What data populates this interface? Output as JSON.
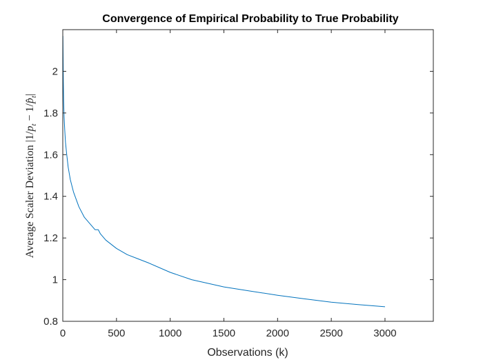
{
  "chart_data": {
    "type": "line",
    "title": "Convergence of Empirical Probability to True Probability",
    "xlabel": "Observations (k)",
    "ylabel": "Average Scaler Deviation |1/p_t − 1/p̂_t|",
    "ylabel_parts": {
      "text": "Average Scaler Deviation ",
      "math_open": "|1/",
      "p1": "p",
      "sub1": "t",
      "minus": " − 1/",
      "p2": "p̂",
      "sub2": "t",
      "math_close": "|"
    },
    "xlim": [
      0,
      3450
    ],
    "ylim": [
      0.8,
      2.2
    ],
    "x_ticks": [
      0,
      500,
      1000,
      1500,
      2000,
      2500,
      3000
    ],
    "y_ticks": [
      0.8,
      1,
      1.2,
      1.4,
      1.6,
      1.8,
      2
    ],
    "x_tick_labels": [
      "0",
      "500",
      "1000",
      "1500",
      "2000",
      "2500",
      "3000"
    ],
    "y_tick_labels": [
      "0.8",
      "1",
      "1.2",
      "1.4",
      "1.6",
      "1.8",
      "2"
    ],
    "grid": false,
    "line_color": "#0072BD",
    "series": [
      {
        "x": [
          1,
          3,
          5,
          8,
          12,
          18,
          25,
          35,
          50,
          70,
          100,
          150,
          200,
          300,
          330,
          350,
          400,
          500,
          600,
          700,
          800,
          1000,
          1200,
          1500,
          1750,
          2000,
          2250,
          2500,
          2750,
          3000
        ],
        "y": [
          2.17,
          2.06,
          1.95,
          1.86,
          1.78,
          1.72,
          1.66,
          1.61,
          1.54,
          1.48,
          1.42,
          1.35,
          1.3,
          1.24,
          1.24,
          1.22,
          1.19,
          1.15,
          1.12,
          1.1,
          1.08,
          1.035,
          1.0,
          0.965,
          0.945,
          0.925,
          0.908,
          0.892,
          0.88,
          0.87
        ]
      }
    ]
  }
}
